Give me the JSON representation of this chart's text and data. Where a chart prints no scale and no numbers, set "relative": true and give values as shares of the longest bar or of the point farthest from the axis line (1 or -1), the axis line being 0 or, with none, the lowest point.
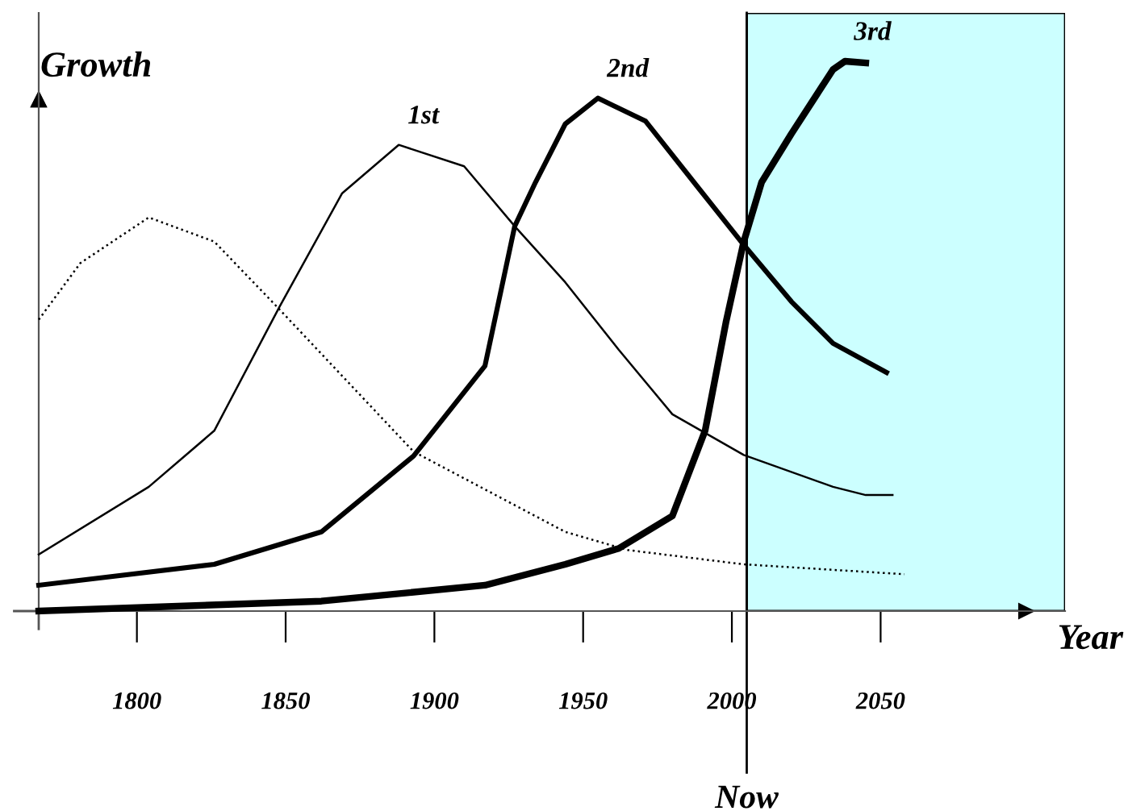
{
  "chart_data": {
    "type": "line",
    "relative": true,
    "xlabel": "Year",
    "ylabel": "Growth",
    "xlim": [
      1767,
      2112
    ],
    "xticks": [
      1800,
      1850,
      1900,
      1950,
      2000,
      2050
    ],
    "grid": false,
    "legend": false,
    "marker": "none",
    "bands": [
      {
        "axis": "x",
        "from": 2005,
        "to": 2112,
        "color": "#ccffff"
      }
    ],
    "ref_lines": [
      {
        "axis": "x",
        "value": 2005,
        "label": "Now",
        "color": "#000000",
        "line_style": "solid"
      }
    ],
    "series": [
      {
        "color": "#000000",
        "line_style": "dotted",
        "x": [
          1767,
          1781,
          1804,
          1826,
          1847,
          1893,
          1944,
          1965,
          2004,
          2058
        ],
        "values": [
          0.53,
          0.633,
          0.716,
          0.672,
          0.554,
          0.29,
          0.144,
          0.111,
          0.085,
          0.067
        ]
      },
      {
        "name": "1st",
        "color": "#000000",
        "line_style": "solid",
        "x": [
          1767,
          1804,
          1826,
          1848,
          1869,
          1888,
          1910,
          1927,
          1944,
          1962,
          1980,
          2004,
          2034,
          2045,
          2054
        ],
        "values": [
          0.103,
          0.226,
          0.328,
          0.554,
          0.76,
          0.848,
          0.809,
          0.7,
          0.598,
          0.475,
          0.358,
          0.284,
          0.226,
          0.211,
          0.211
        ]
      },
      {
        "name": "2nd",
        "color": "#000000",
        "line_style": "solid",
        "x": [
          1767,
          1826,
          1862,
          1893,
          1917,
          1927,
          1934,
          1944,
          1955,
          1971,
          1989,
          2004,
          2020,
          2034,
          2052
        ],
        "values": [
          0.047,
          0.085,
          0.144,
          0.282,
          0.446,
          0.7,
          0.78,
          0.886,
          0.933,
          0.891,
          0.768,
          0.666,
          0.563,
          0.487,
          0.434
        ]
      },
      {
        "name": "3rd",
        "color": "#000000",
        "line_style": "solid",
        "x": [
          1767,
          1862,
          1917,
          1944,
          1962,
          1980,
          1991,
          1998,
          2004,
          2010,
          2020,
          2034,
          2038,
          2045
        ],
        "values": [
          0,
          0.018,
          0.047,
          0.085,
          0.114,
          0.173,
          0.328,
          0.525,
          0.672,
          0.78,
          0.868,
          0.985,
          1.0,
          0.997
        ]
      }
    ]
  }
}
